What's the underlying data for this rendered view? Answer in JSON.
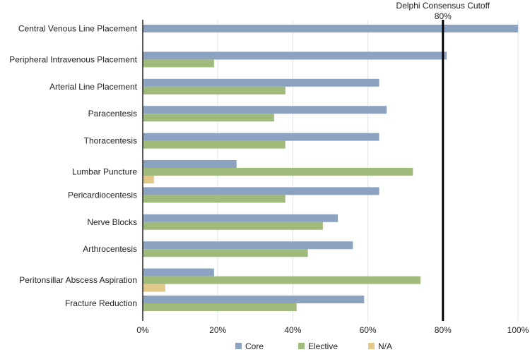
{
  "chart_data": {
    "type": "bar",
    "orientation": "horizontal",
    "categories": [
      "Central Venous Line Placement",
      "Peripheral Intravenous Placement",
      "Arterial Line Placement",
      "Paracentesis",
      "Thoracentesis",
      "Lumbar Puncture",
      "Pericardiocentesis",
      "Nerve Blocks",
      "Arthrocentesis",
      "Peritonsillar Abscess Aspiration",
      "Fracture Reduction"
    ],
    "series": [
      {
        "name": "Core",
        "color": "#8ba3c1",
        "values": [
          100,
          81,
          63,
          65,
          63,
          25,
          63,
          52,
          56,
          19,
          59
        ]
      },
      {
        "name": "Elective",
        "color": "#9fba7a",
        "values": [
          0,
          19,
          38,
          35,
          38,
          72,
          38,
          48,
          44,
          74,
          41
        ]
      },
      {
        "name": "N/A",
        "color": "#e2c98a",
        "values": [
          0,
          0,
          0,
          0,
          0,
          3,
          0,
          0,
          0,
          6,
          0
        ]
      }
    ],
    "xlim": [
      0,
      100
    ],
    "xticks": [
      "0%",
      "20%",
      "40%",
      "60%",
      "80%",
      "100%"
    ],
    "xtick_values": [
      0,
      20,
      40,
      60,
      80,
      100
    ],
    "grid": true,
    "legend_position": "bottom",
    "reference_line": {
      "value": 80,
      "label": "Delphi Consensus Cutoff",
      "value_label": "80%"
    }
  }
}
